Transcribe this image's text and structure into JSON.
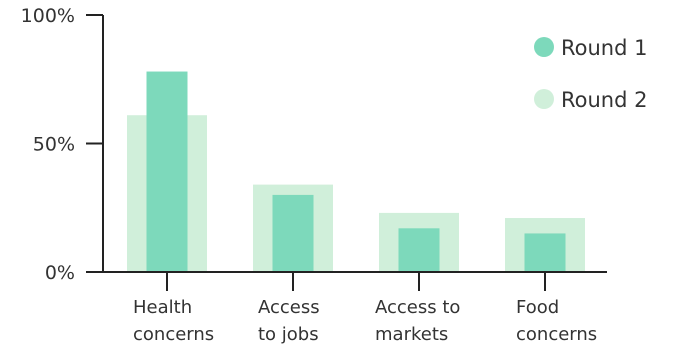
{
  "chart_data": {
    "type": "bar",
    "categories": [
      [
        "Health",
        "concerns"
      ],
      [
        "Access",
        "to jobs"
      ],
      [
        "Access to",
        "markets"
      ],
      [
        "Food",
        "concerns"
      ]
    ],
    "series": [
      {
        "name": "Round 1",
        "values": [
          78,
          30,
          17,
          15
        ],
        "color": "#7dd9bb"
      },
      {
        "name": "Round 2",
        "values": [
          61,
          34,
          23,
          21
        ],
        "color": "#d0efda"
      }
    ],
    "ylim": [
      0,
      100
    ],
    "yticks": [
      {
        "value": 0,
        "label": "0%"
      },
      {
        "value": 50,
        "label": "50%"
      },
      {
        "value": 100,
        "label": "100%"
      }
    ],
    "legend_position": "top-right",
    "grid": false
  }
}
